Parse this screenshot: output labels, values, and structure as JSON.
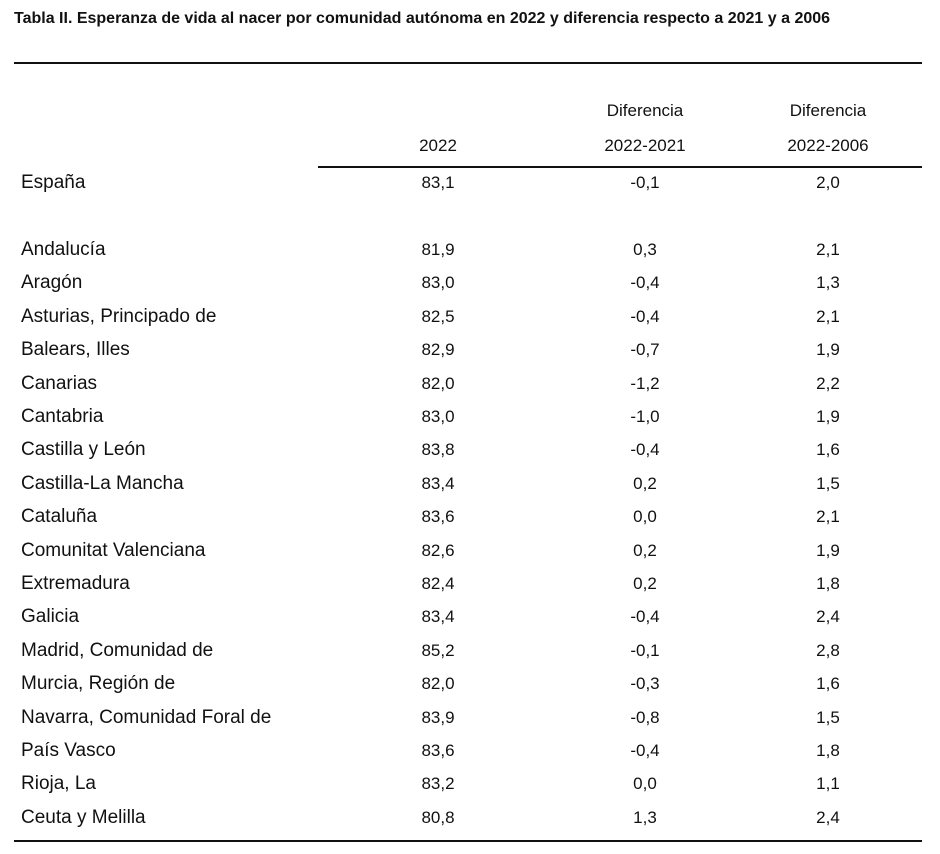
{
  "title": "Tabla II. Esperanza de vida al nacer por comunidad autónoma en 2022 y diferencia respecto a 2021 y a 2006",
  "columns": {
    "c2022": "2022",
    "d1_line1": "Diferencia",
    "d1_line2": "2022-2021",
    "d2_line1": "Diferencia",
    "d2_line2": "2022-2006"
  },
  "rows": [
    {
      "name": "España",
      "v2022": "83,1",
      "d2021": "-0,1",
      "d2006": "2,0"
    },
    {
      "name": "Andalucía",
      "v2022": "81,9",
      "d2021": "0,3",
      "d2006": "2,1"
    },
    {
      "name": "Aragón",
      "v2022": "83,0",
      "d2021": "-0,4",
      "d2006": "1,3"
    },
    {
      "name": "Asturias, Principado de",
      "v2022": "82,5",
      "d2021": "-0,4",
      "d2006": "2,1"
    },
    {
      "name": "Balears, Illes",
      "v2022": "82,9",
      "d2021": "-0,7",
      "d2006": "1,9"
    },
    {
      "name": "Canarias",
      "v2022": "82,0",
      "d2021": "-1,2",
      "d2006": "2,2"
    },
    {
      "name": "Cantabria",
      "v2022": "83,0",
      "d2021": "-1,0",
      "d2006": "1,9"
    },
    {
      "name": "Castilla y León",
      "v2022": "83,8",
      "d2021": "-0,4",
      "d2006": "1,6"
    },
    {
      "name": "Castilla-La Mancha",
      "v2022": "83,4",
      "d2021": "0,2",
      "d2006": "1,5"
    },
    {
      "name": "Cataluña",
      "v2022": "83,6",
      "d2021": "0,0",
      "d2006": "2,1"
    },
    {
      "name": "Comunitat Valenciana",
      "v2022": "82,6",
      "d2021": "0,2",
      "d2006": "1,9"
    },
    {
      "name": "Extremadura",
      "v2022": "82,4",
      "d2021": "0,2",
      "d2006": "1,8"
    },
    {
      "name": "Galicia",
      "v2022": "83,4",
      "d2021": "-0,4",
      "d2006": "2,4"
    },
    {
      "name": "Madrid, Comunidad de",
      "v2022": "85,2",
      "d2021": "-0,1",
      "d2006": "2,8"
    },
    {
      "name": "Murcia, Región de",
      "v2022": "82,0",
      "d2021": "-0,3",
      "d2006": "1,6"
    },
    {
      "name": "Navarra, Comunidad Foral de",
      "v2022": "83,9",
      "d2021": "-0,8",
      "d2006": "1,5"
    },
    {
      "name": "País Vasco",
      "v2022": "83,6",
      "d2021": "-0,4",
      "d2006": "1,8"
    },
    {
      "name": "Rioja, La",
      "v2022": "83,2",
      "d2021": "0,0",
      "d2006": "1,1"
    },
    {
      "name": "Ceuta y Melilla",
      "v2022": "80,8",
      "d2021": "1,3",
      "d2006": "2,4"
    }
  ]
}
